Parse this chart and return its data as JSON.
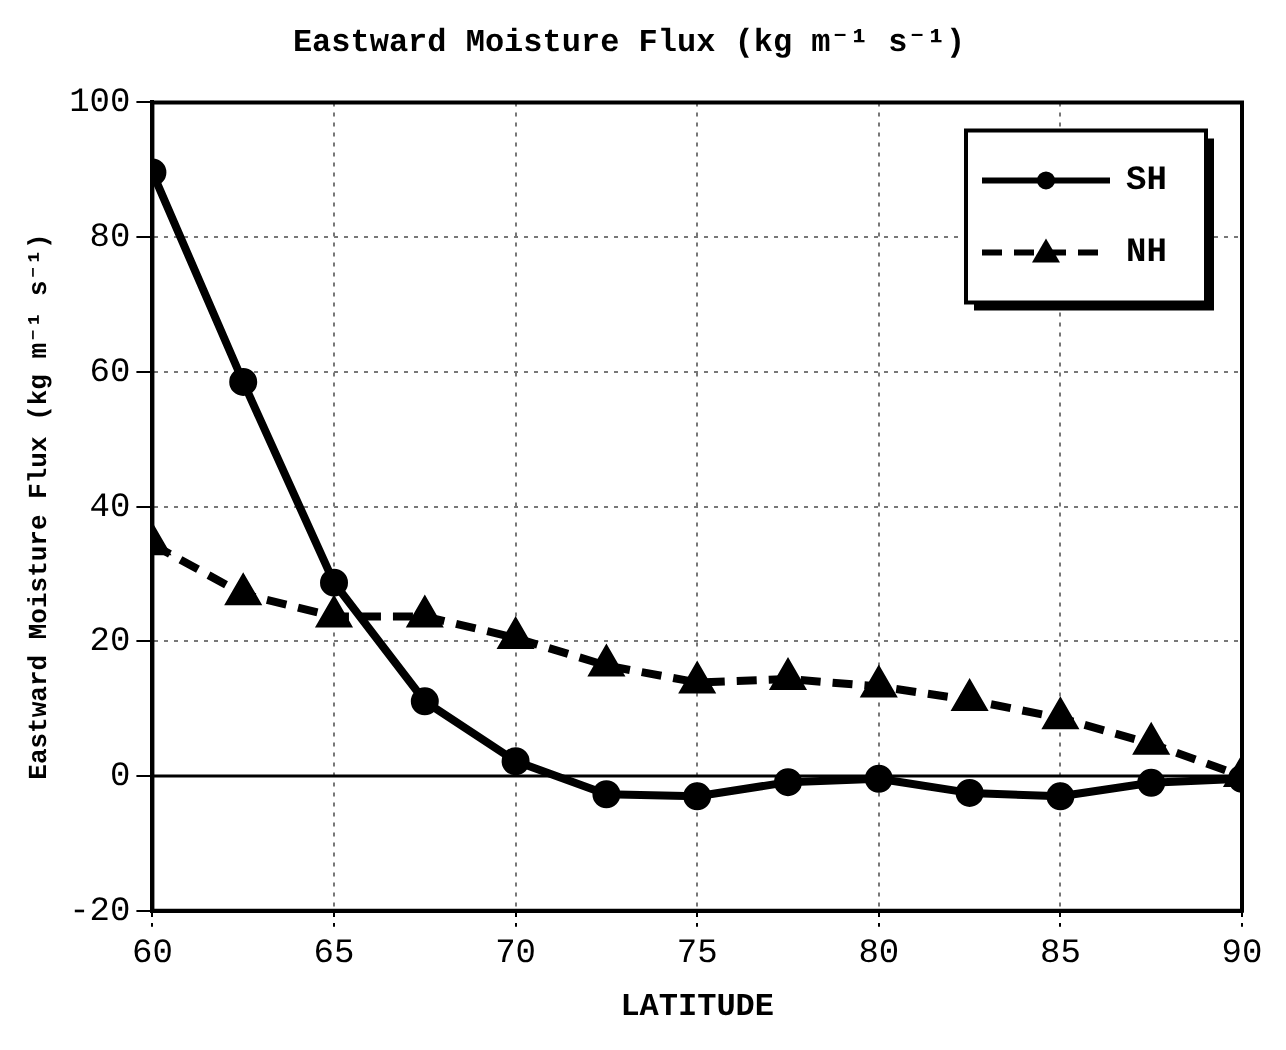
{
  "chart_data": {
    "type": "line",
    "title": "Eastward Moisture Flux (kg m⁻¹ s⁻¹)",
    "xlabel": "LATITUDE",
    "ylabel": "Eastward Moisture Flux (kg m⁻¹ s⁻¹)",
    "x": [
      60,
      62.5,
      65,
      67.5,
      70,
      72.5,
      75,
      77.5,
      80,
      82.5,
      85,
      87.5,
      90
    ],
    "series": [
      {
        "name": "SH",
        "color": "#000000",
        "marker": "circle",
        "line_style": "solid",
        "values": [
          89.6,
          58.5,
          28.7,
          11.1,
          2.2,
          -2.7,
          -3,
          -0.9,
          -0.4,
          -2.5,
          -3,
          -1,
          -0.4
        ]
      },
      {
        "name": "NH",
        "color": "#000000",
        "marker": "triangle",
        "line_style": "dashed",
        "values": [
          34.4,
          27,
          23.7,
          23.7,
          20.5,
          16.4,
          13.9,
          14.4,
          13.3,
          11.3,
          8.6,
          4.8,
          0
        ]
      }
    ],
    "xlim": [
      60,
      90
    ],
    "xticks": [
      60,
      65,
      70,
      75,
      80,
      85,
      90
    ],
    "ylim": [
      -20,
      100
    ],
    "yticks": [
      -20,
      0,
      20,
      40,
      60,
      80,
      100
    ],
    "ref_lines": [
      {
        "axis": "y",
        "value": 0,
        "color": "#000000"
      }
    ],
    "grid": true,
    "legend": "top right"
  }
}
